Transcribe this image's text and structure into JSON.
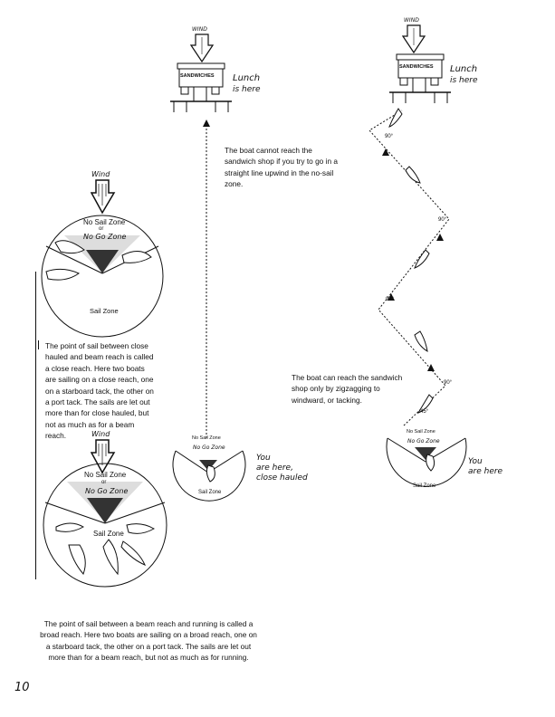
{
  "wind_label": "Wind",
  "top_wind_label": "WIND",
  "shop_sign": "SANDWICHES",
  "lunch_line1": "Lunch",
  "lunch_line2": "is here",
  "no_sail_text": "The boat cannot reach the sandwich shop if you try to go in a straight line upwind in the no-sail zone.",
  "tack_text": "The boat can reach the sandwich shop only by zigzagging to windward, or tacking.",
  "close_reach_text": "The point of sail between close hauled and beam reach is called a close reach. Here two boats are sailing on a close reach, one on a starboard tack, the other on a port tack. The sails are let out more than for close hauled, but not as much as for a beam reach.",
  "broad_reach_text": "The point of sail between a beam reach and running is called a broad reach. Here two boats are sailing on a broad reach, one on a starboard tack, the other on a port tack. The sails are let out more than for a beam reach, but not as much as for running.",
  "no_sail_zone": "No Sail Zone",
  "or_word": "or",
  "no_go_zone": "No Go Zone",
  "sail_zone": "Sail Zone",
  "boat_labels": {
    "close_hauled": "close hauled",
    "close_reach": "close reach",
    "beam_reach": "beam reach",
    "broad_reach": "broad reach",
    "running": "running"
  },
  "you_here_1_line1": "You",
  "you_here_1_line2": "are here,",
  "you_here_1_line3": "close hauled",
  "you_here_2_line1": "You",
  "you_here_2_line2": "are here",
  "angle_90": "90°",
  "angle_45": "45°",
  "page_number": "10"
}
